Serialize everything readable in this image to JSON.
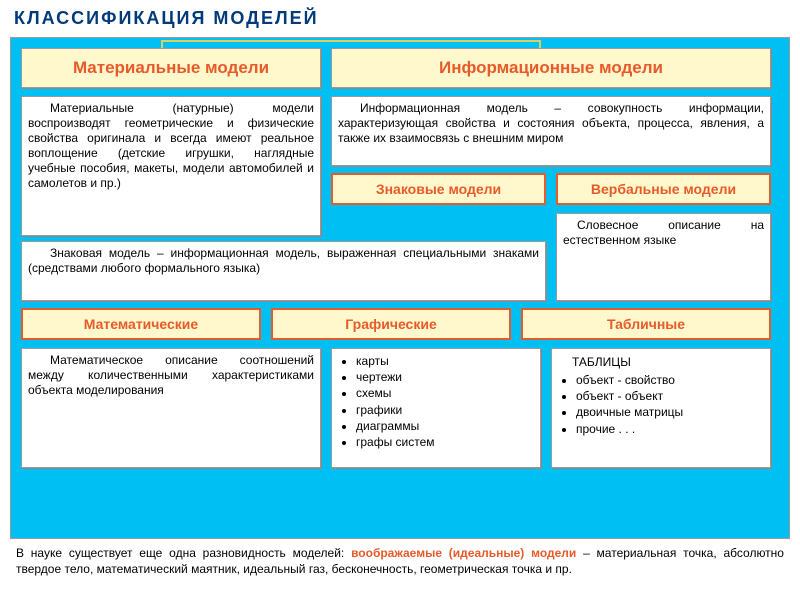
{
  "title": "КЛАССИФИКАЦИЯ  МОДЕЛЕЙ",
  "colors": {
    "bg": "#00bff3",
    "header_bg": "#fff8cc",
    "accent": "#e85a2a",
    "title_color": "#003a7a",
    "box_bg": "#ffffff",
    "border": "#999999"
  },
  "top": {
    "left": "Материальные  модели",
    "right": "Информационные  модели",
    "left_desc": "Материальные (натурные) модели воспроизводят геометрические и физические свойства оригинала и всегда имеют реальное воплощение (детские игрушки, наглядные учебные пособия, макеты, модели автомобилей и самолетов и пр.)",
    "right_desc": "Информационная модель – совокупность информации, характеризующая свойства и состояния объекта, процесса, явления, а также их взаимосвязь с внешним миром"
  },
  "mid": {
    "sign": "Знаковые модели",
    "verbal": "Вербальные  модели",
    "sign_desc": "Знаковая модель – информационная модель, выраженная специальными знаками (средствами любого формального языка)",
    "verbal_desc": "Словесное описание на естественном языке"
  },
  "cats": {
    "math": "Математические",
    "graph": "Графические",
    "table": "Табличные",
    "math_desc": "Математическое описание соотношений между количественными характеристиками объекта моделирования",
    "graph_head": "",
    "graph_items": [
      "карты",
      "чертежи",
      "схемы",
      "графики",
      "диаграммы",
      "графы систем"
    ],
    "table_head": "ТАБЛИЦЫ",
    "table_items": [
      "объект - свойство",
      "объект - объект",
      "двоичные матрицы",
      "прочие . . ."
    ]
  },
  "footer": {
    "pre": "В науке  существует еще одна разновидность моделей: ",
    "accent": "воображаемые (идеальные) модели",
    "post": " – материальная точка, абсолютно твердое тело, математический маятник, идеальный газ, бесконечность, геометрическая точка и пр."
  }
}
